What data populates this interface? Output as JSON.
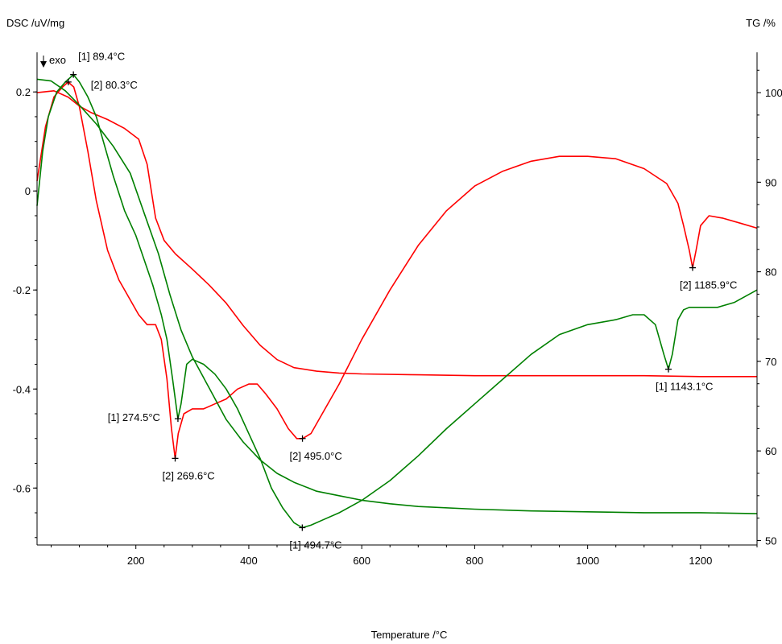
{
  "chart_data": {
    "type": "line",
    "axes": {
      "left_label": "DSC /uV/mg",
      "right_label": "TG /%",
      "x_label": "Temperature /°C",
      "exo_label": "exo",
      "xlim": [
        25,
        1300
      ],
      "left_ylim": [
        -0.715,
        0.28
      ],
      "right_ylim": [
        49.5,
        104.5
      ],
      "x_ticks": [
        200,
        400,
        600,
        800,
        1000,
        1200
      ],
      "left_ticks": [
        0.2,
        0,
        -0.2,
        -0.4,
        -0.6
      ],
      "left_tick_labels": [
        "0.2",
        "0",
        "-0.2",
        "-0.4",
        "-0.6"
      ],
      "right_ticks": [
        100,
        90,
        80,
        70,
        60,
        50
      ],
      "grid": false
    },
    "series": [
      {
        "axis": "left",
        "color": "#ff0000",
        "points": [
          [
            25,
            0.02
          ],
          [
            40,
            0.13
          ],
          [
            55,
            0.19
          ],
          [
            70,
            0.21
          ],
          [
            80,
            0.22
          ],
          [
            90,
            0.21
          ],
          [
            100,
            0.17
          ],
          [
            115,
            0.08
          ],
          [
            130,
            -0.02
          ],
          [
            150,
            -0.12
          ],
          [
            170,
            -0.18
          ],
          [
            190,
            -0.22
          ],
          [
            205,
            -0.25
          ],
          [
            220,
            -0.27
          ],
          [
            235,
            -0.27
          ],
          [
            245,
            -0.3
          ],
          [
            255,
            -0.38
          ],
          [
            263,
            -0.48
          ],
          [
            269.6,
            -0.54
          ],
          [
            275,
            -0.49
          ],
          [
            285,
            -0.45
          ],
          [
            300,
            -0.44
          ],
          [
            320,
            -0.44
          ],
          [
            340,
            -0.43
          ],
          [
            360,
            -0.42
          ],
          [
            380,
            -0.4
          ],
          [
            400,
            -0.39
          ],
          [
            415,
            -0.39
          ],
          [
            430,
            -0.41
          ],
          [
            450,
            -0.44
          ],
          [
            470,
            -0.48
          ],
          [
            485,
            -0.5
          ],
          [
            495,
            -0.5
          ],
          [
            510,
            -0.49
          ],
          [
            530,
            -0.45
          ],
          [
            560,
            -0.39
          ],
          [
            600,
            -0.3
          ],
          [
            650,
            -0.2
          ],
          [
            700,
            -0.11
          ],
          [
            750,
            -0.04
          ],
          [
            800,
            0.01
          ],
          [
            850,
            0.04
          ],
          [
            900,
            0.06
          ],
          [
            950,
            0.07
          ],
          [
            1000,
            0.07
          ],
          [
            1050,
            0.065
          ],
          [
            1100,
            0.045
          ],
          [
            1140,
            0.015
          ],
          [
            1160,
            -0.025
          ],
          [
            1170,
            -0.07
          ],
          [
            1180,
            -0.12
          ],
          [
            1185.9,
            -0.155
          ],
          [
            1192,
            -0.12
          ],
          [
            1200,
            -0.07
          ],
          [
            1215,
            -0.05
          ],
          [
            1240,
            -0.055
          ],
          [
            1270,
            -0.065
          ],
          [
            1300,
            -0.075
          ]
        ]
      },
      {
        "axis": "right",
        "color": "#ff0000",
        "points": [
          [
            25,
            100
          ],
          [
            55,
            100.2
          ],
          [
            80,
            99.5
          ],
          [
            100,
            98.5
          ],
          [
            120,
            97.8
          ],
          [
            150,
            97
          ],
          [
            180,
            96
          ],
          [
            205,
            94.8
          ],
          [
            220,
            92
          ],
          [
            235,
            86
          ],
          [
            250,
            83.5
          ],
          [
            270,
            82
          ],
          [
            300,
            80.3
          ],
          [
            330,
            78.5
          ],
          [
            360,
            76.5
          ],
          [
            390,
            74
          ],
          [
            420,
            71.8
          ],
          [
            450,
            70.2
          ],
          [
            480,
            69.3
          ],
          [
            520,
            68.9
          ],
          [
            560,
            68.7
          ],
          [
            600,
            68.6
          ],
          [
            700,
            68.5
          ],
          [
            800,
            68.4
          ],
          [
            900,
            68.4
          ],
          [
            1000,
            68.4
          ],
          [
            1100,
            68.4
          ],
          [
            1200,
            68.3
          ],
          [
            1300,
            68.3
          ]
        ]
      },
      {
        "axis": "left",
        "color": "#008000",
        "points": [
          [
            25,
            -0.03
          ],
          [
            35,
            0.08
          ],
          [
            45,
            0.15
          ],
          [
            60,
            0.2
          ],
          [
            75,
            0.22
          ],
          [
            89.4,
            0.235
          ],
          [
            100,
            0.22
          ],
          [
            115,
            0.19
          ],
          [
            130,
            0.15
          ],
          [
            145,
            0.09
          ],
          [
            160,
            0.03
          ],
          [
            180,
            -0.04
          ],
          [
            200,
            -0.09
          ],
          [
            215,
            -0.14
          ],
          [
            230,
            -0.19
          ],
          [
            245,
            -0.25
          ],
          [
            255,
            -0.3
          ],
          [
            265,
            -0.38
          ],
          [
            274.5,
            -0.46
          ],
          [
            280,
            -0.43
          ],
          [
            290,
            -0.35
          ],
          [
            300,
            -0.34
          ],
          [
            320,
            -0.35
          ],
          [
            340,
            -0.37
          ],
          [
            360,
            -0.4
          ],
          [
            380,
            -0.44
          ],
          [
            400,
            -0.49
          ],
          [
            420,
            -0.54
          ],
          [
            440,
            -0.6
          ],
          [
            460,
            -0.64
          ],
          [
            480,
            -0.67
          ],
          [
            494.7,
            -0.68
          ],
          [
            510,
            -0.675
          ],
          [
            530,
            -0.665
          ],
          [
            560,
            -0.65
          ],
          [
            600,
            -0.625
          ],
          [
            650,
            -0.585
          ],
          [
            700,
            -0.535
          ],
          [
            750,
            -0.48
          ],
          [
            800,
            -0.43
          ],
          [
            850,
            -0.38
          ],
          [
            900,
            -0.33
          ],
          [
            950,
            -0.29
          ],
          [
            1000,
            -0.27
          ],
          [
            1050,
            -0.26
          ],
          [
            1080,
            -0.25
          ],
          [
            1100,
            -0.25
          ],
          [
            1120,
            -0.27
          ],
          [
            1135,
            -0.33
          ],
          [
            1143.1,
            -0.36
          ],
          [
            1150,
            -0.33
          ],
          [
            1160,
            -0.26
          ],
          [
            1170,
            -0.24
          ],
          [
            1180,
            -0.235
          ],
          [
            1200,
            -0.235
          ],
          [
            1230,
            -0.235
          ],
          [
            1260,
            -0.225
          ],
          [
            1300,
            -0.2
          ]
        ]
      },
      {
        "axis": "right",
        "color": "#008000",
        "points": [
          [
            25,
            101.5
          ],
          [
            50,
            101.3
          ],
          [
            75,
            100.2
          ],
          [
            100,
            98.6
          ],
          [
            130,
            96.5
          ],
          [
            160,
            94
          ],
          [
            190,
            91
          ],
          [
            215,
            86.5
          ],
          [
            240,
            82
          ],
          [
            260,
            77.5
          ],
          [
            280,
            73.5
          ],
          [
            300,
            70.5
          ],
          [
            330,
            67
          ],
          [
            360,
            63.5
          ],
          [
            390,
            61
          ],
          [
            420,
            59
          ],
          [
            450,
            57.5
          ],
          [
            480,
            56.5
          ],
          [
            520,
            55.5
          ],
          [
            560,
            55
          ],
          [
            600,
            54.5
          ],
          [
            650,
            54.1
          ],
          [
            700,
            53.8
          ],
          [
            800,
            53.5
          ],
          [
            900,
            53.3
          ],
          [
            1000,
            53.2
          ],
          [
            1100,
            53.1
          ],
          [
            1200,
            53.1
          ],
          [
            1300,
            53
          ]
        ]
      }
    ],
    "annotations": [
      {
        "label": "[1] 89.4°C",
        "x": 89.4,
        "y": 0.235,
        "anchor": "left"
      },
      {
        "label": "[2] 80.3°C",
        "x": 80.3,
        "y": 0.22,
        "anchor": "right-below"
      },
      {
        "label": "[1] 274.5°C",
        "x": 274.5,
        "y": -0.46,
        "anchor": "left-of"
      },
      {
        "label": "[2] 269.6°C",
        "x": 269.6,
        "y": -0.54,
        "anchor": "below"
      },
      {
        "label": "[2] 495.0°C",
        "x": 495.0,
        "y": -0.5,
        "anchor": "below"
      },
      {
        "label": "[1] 494.7°C",
        "x": 494.7,
        "y": -0.68,
        "anchor": "below"
      },
      {
        "label": "[1] 1143.1°C",
        "x": 1143.1,
        "y": -0.36,
        "anchor": "below"
      },
      {
        "label": "[2] 1185.9°C",
        "x": 1185.9,
        "y": -0.155,
        "anchor": "below"
      }
    ]
  }
}
